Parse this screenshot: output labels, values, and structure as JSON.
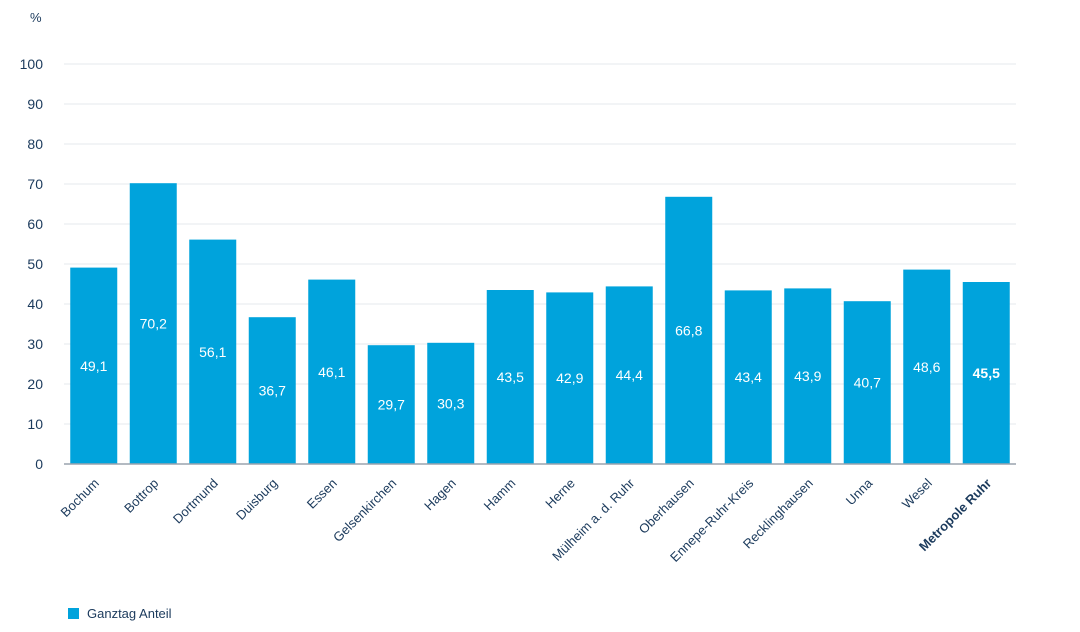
{
  "chart_data": {
    "type": "bar",
    "unit_label": "%",
    "ylim": [
      0,
      100
    ],
    "yticks": [
      "0",
      "10",
      "20",
      "30",
      "40",
      "50",
      "60",
      "70",
      "80",
      "90",
      "100"
    ],
    "ytick_values": [
      0,
      10,
      20,
      30,
      40,
      50,
      60,
      70,
      80,
      90,
      100
    ],
    "grid": true,
    "legend_position": "bottom-left",
    "categories": [
      "Bochum",
      "Bottrop",
      "Dortmund",
      "Duisburg",
      "Essen",
      "Gelsenkirchen",
      "Hagen",
      "Hamm",
      "Herne",
      "Mülheim a. d. Ruhr",
      "Oberhausen",
      "Ennepe-Ruhr-Kreis",
      "Recklinghausen",
      "Unna",
      "Wesel",
      "Metropole Ruhr"
    ],
    "highlighted_category": "Metropole Ruhr",
    "series": [
      {
        "name": "Ganztag Anteil",
        "color": "#00a3dc",
        "values": [
          49.1,
          70.2,
          56.1,
          36.7,
          46.1,
          29.7,
          30.3,
          43.5,
          42.9,
          44.4,
          66.8,
          43.4,
          43.9,
          40.7,
          48.6,
          45.5
        ],
        "value_labels": [
          "49,1",
          "70,2",
          "56,1",
          "36,7",
          "46,1",
          "29,7",
          "30,3",
          "43,5",
          "42,9",
          "44,4",
          "66,8",
          "43,4",
          "43,9",
          "40,7",
          "48,6",
          "45,5"
        ]
      }
    ]
  }
}
